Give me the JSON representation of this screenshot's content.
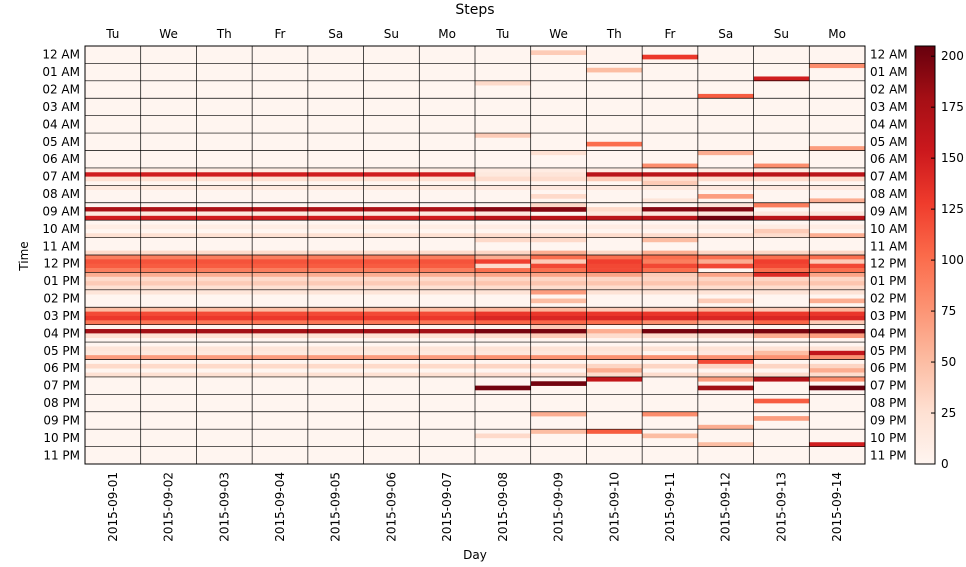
{
  "chart_data": {
    "type": "heatmap",
    "title": "Steps",
    "xlabel": "Day",
    "ylabel": "Time",
    "x_dates": [
      "2015-09-01",
      "2015-09-02",
      "2015-09-03",
      "2015-09-04",
      "2015-09-05",
      "2015-09-06",
      "2015-09-07",
      "2015-09-08",
      "2015-09-09",
      "2015-09-10",
      "2015-09-11",
      "2015-09-12",
      "2015-09-13",
      "2015-09-14"
    ],
    "x_days": [
      "Tu",
      "We",
      "Th",
      "Fr",
      "Sa",
      "Su",
      "Mo",
      "Tu",
      "We",
      "Th",
      "Fr",
      "Sa",
      "Su",
      "Mo"
    ],
    "y_hours": [
      "12 AM",
      "01 AM",
      "02 AM",
      "03 AM",
      "04 AM",
      "05 AM",
      "06 AM",
      "07 AM",
      "08 AM",
      "09 AM",
      "10 AM",
      "11 AM",
      "12 PM",
      "01 PM",
      "02 PM",
      "03 PM",
      "04 PM",
      "05 PM",
      "06 PM",
      "07 PM",
      "08 PM",
      "09 PM",
      "10 PM",
      "11 PM"
    ],
    "colorbar": {
      "min": 0,
      "max": 205,
      "ticks": [
        0,
        25,
        50,
        75,
        100,
        125,
        150,
        175,
        200
      ],
      "colormap": "Reds"
    },
    "resolution": "15-minute slots (4 per hour)",
    "week1_profile": [
      0,
      0,
      0,
      0,
      0,
      0,
      0,
      0,
      0,
      0,
      0,
      0,
      0,
      0,
      0,
      0,
      0,
      0,
      0,
      0,
      0,
      0,
      0,
      0,
      0,
      0,
      0,
      0,
      10,
      150,
      25,
      0,
      15,
      0,
      0,
      0,
      0,
      175,
      15,
      150,
      0,
      10,
      0,
      25,
      0,
      0,
      0,
      30,
      90,
      115,
      110,
      90,
      60,
      30,
      40,
      25,
      20,
      0,
      0,
      0,
      50,
      120,
      130,
      95,
      0,
      180,
      25,
      0,
      0,
      20,
      15,
      70,
      0,
      30,
      0,
      25,
      0,
      0,
      0,
      0
    ],
    "series": [
      {
        "name": "2015-09-08",
        "slots": {
          "3": 0,
          "8": 30,
          "20": 40,
          "29": 15,
          "36": 0,
          "44": 30,
          "48": 60,
          "50": 30,
          "78": 200,
          "89": 30
        }
      },
      {
        "name": "2015-09-09",
        "slots": {
          "1": 40,
          "8": 0,
          "24": 25,
          "29": 20,
          "34": 30,
          "36": 30,
          "38": 0,
          "44": 30,
          "47": 60,
          "49": 40,
          "56": 70,
          "58": 50,
          "64": 40,
          "66": 40,
          "77": 200,
          "84": 60,
          "88": 50
        }
      },
      {
        "name": "2015-09-10",
        "slots": {
          "5": 50,
          "15": 0,
          "22": 100,
          "30": 40,
          "36": 0,
          "37": 30,
          "51": 120,
          "60": 40,
          "63": 100,
          "65": 60,
          "74": 60,
          "76": 160,
          "88": 110
        }
      },
      {
        "name": "2015-09-11",
        "slots": {
          "2": 130,
          "8": 0,
          "27": 80,
          "28": 0,
          "31": 40,
          "34": 0,
          "35": 20,
          "44": 50,
          "47": 60,
          "49": 90,
          "52": 40,
          "60": 40,
          "63": 80,
          "70": 0,
          "84": 80,
          "86": 0,
          "89": 50
        }
      },
      {
        "name": "2015-09-12",
        "slots": {
          "11": 110,
          "24": 60,
          "34": 70,
          "36": 20,
          "39": 200,
          "44": 0,
          "49": 60,
          "51": 0,
          "58": 40,
          "63": 60,
          "72": 120,
          "76": 70,
          "78": 180,
          "87": 60,
          "91": 50
        }
      },
      {
        "name": "2015-09-13",
        "slots": {
          "7": 150,
          "27": 80,
          "36": 90,
          "37": 0,
          "42": 40,
          "44": 0,
          "52": 140,
          "60": 40,
          "66": 60,
          "70": 50,
          "76": 170,
          "81": 110,
          "85": 70
        }
      },
      {
        "name": "2015-09-14",
        "slots": {
          "4": 80,
          "23": 70,
          "28": 0,
          "35": 60,
          "37": 0,
          "43": 60,
          "49": 40,
          "58": 60,
          "63": 40,
          "66": 70,
          "70": 160,
          "74": 60,
          "76": 80,
          "78": 210,
          "91": 150
        }
      }
    ]
  }
}
